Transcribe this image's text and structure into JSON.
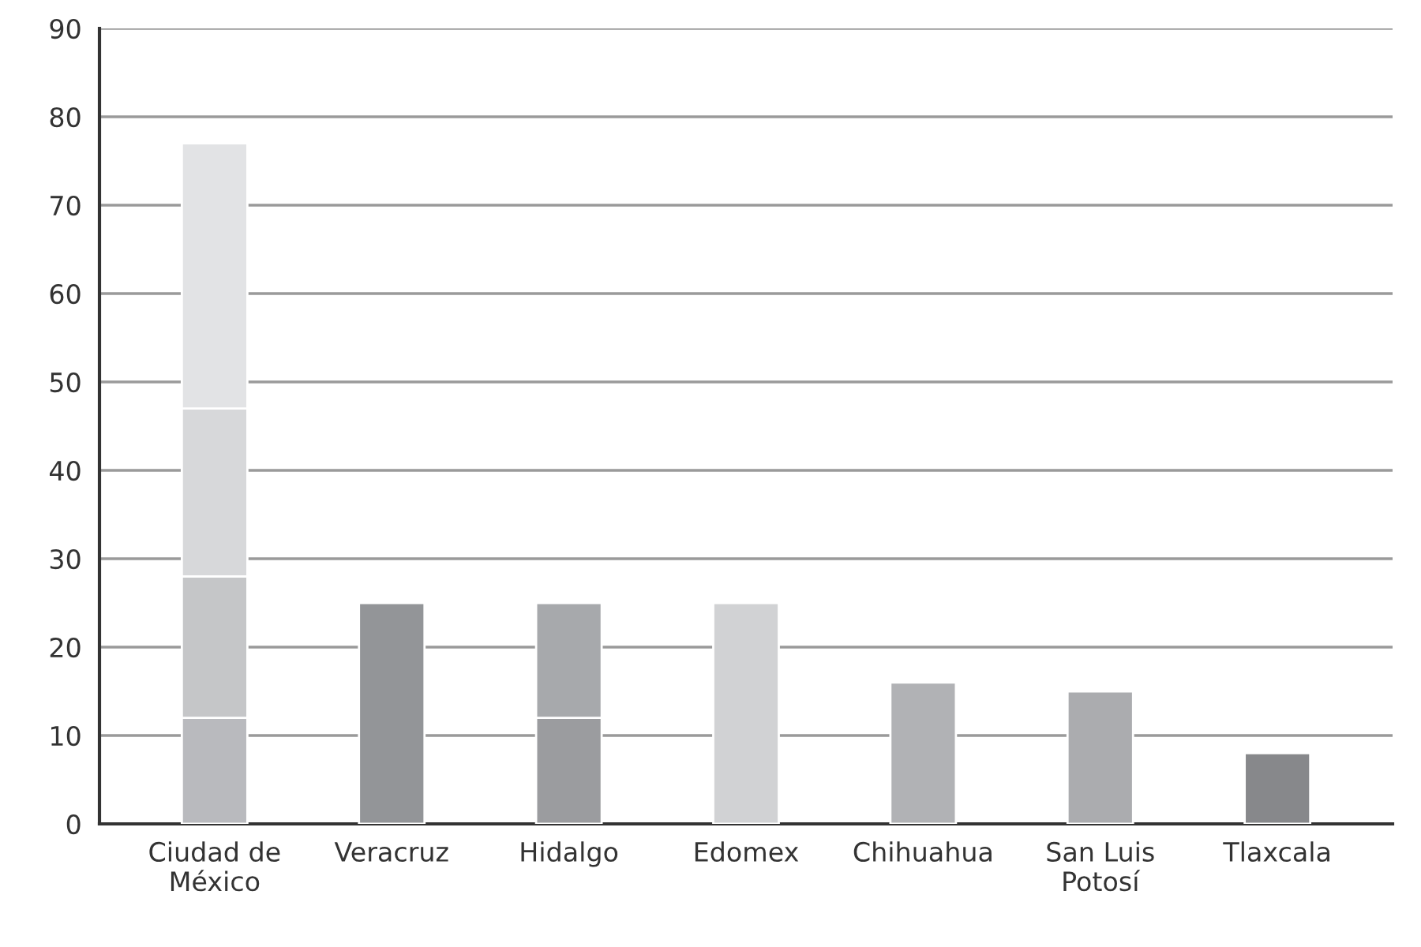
{
  "chart_data": {
    "type": "bar",
    "stacked": true,
    "categories": [
      "Ciudad de\nMéxico",
      "Veracruz",
      "Hidalgo",
      "Edomex",
      "Chihuahua",
      "San Luis\nPotosí",
      "Tlaxcala"
    ],
    "series": [
      {
        "values": [
          12,
          25,
          12,
          25,
          16,
          15,
          8
        ],
        "colors": [
          "#b9babe",
          "#939598",
          "#9b9c9f",
          "#d1d2d4",
          "#b1b2b5",
          "#abacaf",
          "#87888b"
        ]
      },
      {
        "values": [
          16,
          null,
          13,
          null,
          null,
          null,
          null
        ],
        "colors": [
          "#c5c6c8",
          null,
          "#a7a9ac",
          null,
          null,
          null,
          null
        ]
      },
      {
        "values": [
          19,
          null,
          null,
          null,
          null,
          null,
          null
        ],
        "colors": [
          "#d7d8da",
          null,
          null,
          null,
          null,
          null,
          null
        ]
      },
      {
        "values": [
          30,
          null,
          null,
          null,
          null,
          null,
          null
        ],
        "colors": [
          "#e2e3e5",
          null,
          null,
          null,
          null,
          null,
          null
        ]
      }
    ],
    "ylim": [
      0,
      90
    ],
    "yticks": [
      0,
      10,
      20,
      30,
      40,
      50,
      60,
      70,
      80,
      90
    ],
    "grid": "y"
  }
}
